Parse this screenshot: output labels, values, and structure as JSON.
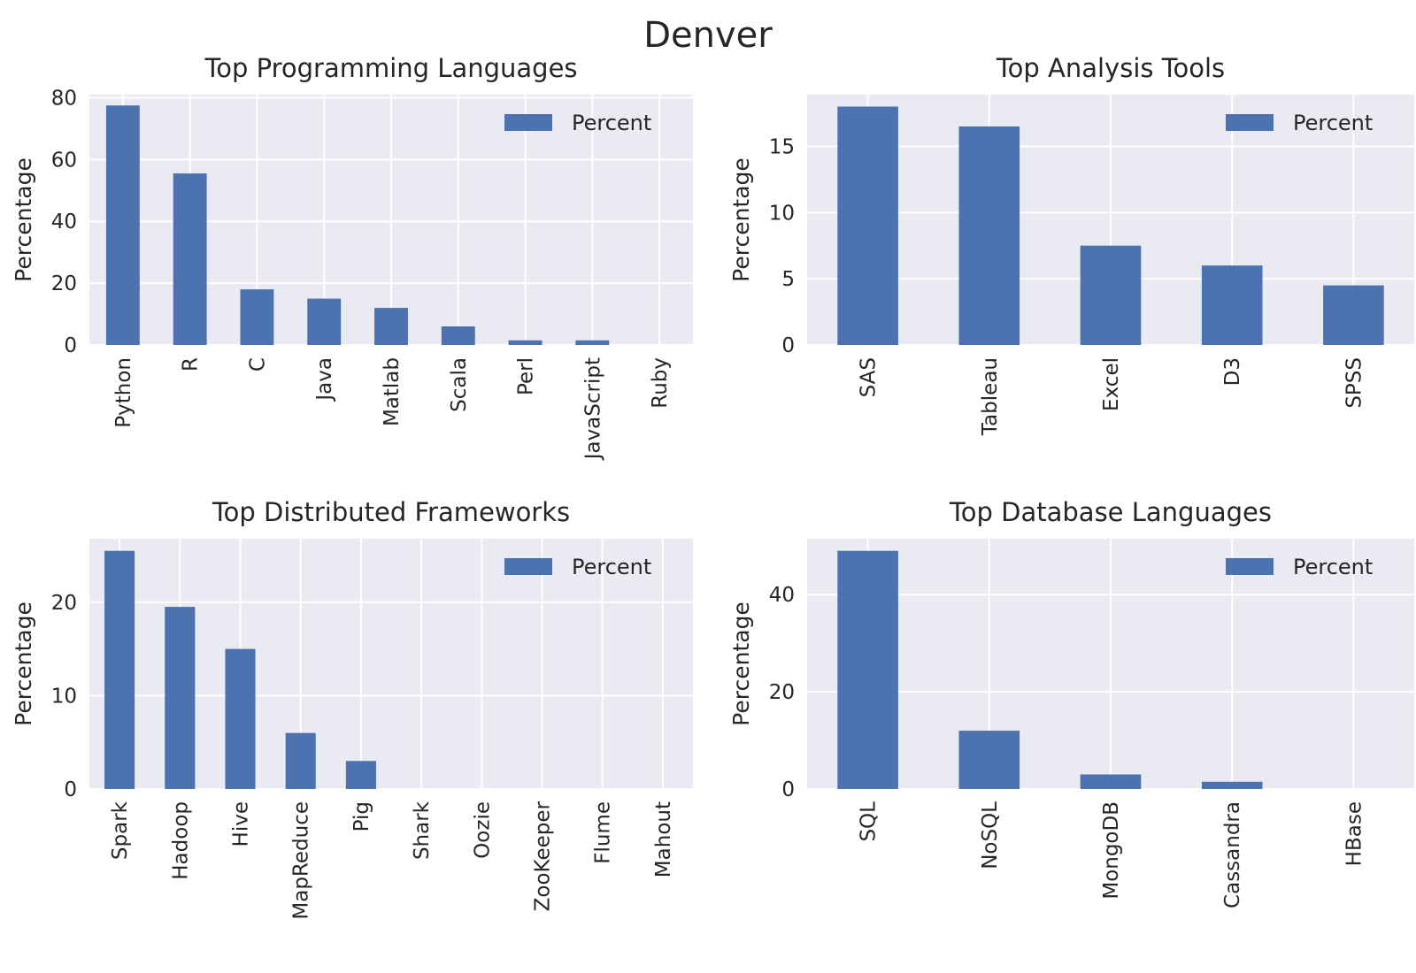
{
  "suptitle": "Denver",
  "colors": {
    "bar": "#4c72b0",
    "panel_bg": "#eaeaf2",
    "grid": "#ffffff",
    "text": "#262626"
  },
  "chart_data": [
    {
      "type": "bar",
      "title": "Top Programming Languages",
      "ylabel": "Percentage",
      "xlabel": "",
      "categories": [
        "Python",
        "R",
        "C",
        "Java",
        "Matlab",
        "Scala",
        "Perl",
        "JavaScript",
        "Ruby"
      ],
      "series": [
        {
          "name": "Percent",
          "values": [
            77.5,
            55.5,
            18.0,
            15.0,
            12.0,
            6.0,
            1.5,
            1.5,
            0.0
          ]
        }
      ],
      "ylim": [
        0,
        81
      ],
      "yticks": [
        0,
        20,
        40,
        60,
        80
      ],
      "grid": true,
      "legend": "top-right"
    },
    {
      "type": "bar",
      "title": "Top Analysis Tools",
      "ylabel": "Percentage",
      "xlabel": "",
      "categories": [
        "SAS",
        "Tableau",
        "Excel",
        "D3",
        "SPSS"
      ],
      "series": [
        {
          "name": "Percent",
          "values": [
            18.0,
            16.5,
            7.5,
            6.0,
            4.5
          ]
        }
      ],
      "ylim": [
        0,
        18.9
      ],
      "yticks": [
        0,
        5,
        10,
        15
      ],
      "grid": true,
      "legend": "top-right"
    },
    {
      "type": "bar",
      "title": "Top Distributed Frameworks",
      "ylabel": "Percentage",
      "xlabel": "",
      "categories": [
        "Spark",
        "Hadoop",
        "Hive",
        "MapReduce",
        "Pig",
        "Shark",
        "Oozie",
        "ZooKeeper",
        "Flume",
        "Mahout"
      ],
      "series": [
        {
          "name": "Percent",
          "values": [
            25.5,
            19.5,
            15.0,
            6.0,
            3.0,
            0.0,
            0.0,
            0.0,
            0.0,
            0.0
          ]
        }
      ],
      "ylim": [
        0,
        26.8
      ],
      "yticks": [
        0,
        10,
        20
      ],
      "grid": true,
      "legend": "top-right"
    },
    {
      "type": "bar",
      "title": "Top Database Languages",
      "ylabel": "Percentage",
      "xlabel": "",
      "categories": [
        "SQL",
        "NoSQL",
        "MongoDB",
        "Cassandra",
        "HBase"
      ],
      "series": [
        {
          "name": "Percent",
          "values": [
            49.0,
            12.0,
            3.0,
            1.5,
            0.0
          ]
        }
      ],
      "ylim": [
        0,
        51.5
      ],
      "yticks": [
        0,
        20,
        40
      ],
      "grid": true,
      "legend": "top-right"
    }
  ]
}
